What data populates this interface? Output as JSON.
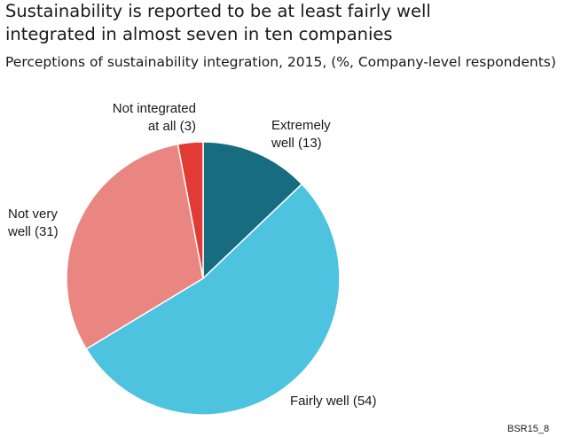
{
  "title_lines": [
    "Sustainability is reported to be at least fairly well",
    "integrated in almost seven in ten companies"
  ],
  "subtitle": "Perceptions of sustainability integration, 2015, (%, Company-level respondents)",
  "source_note": "BSR15_8",
  "chart_data": {
    "type": "pie",
    "title": "Sustainability is reported to be at least fairly well integrated in almost seven in ten companies",
    "subtitle": "Perceptions of sustainability integration, 2015, (%, Company-level respondents)",
    "start": "12 o'clock",
    "direction": "clockwise",
    "slices": [
      {
        "label_lines": [
          "Extremely",
          "well (13)"
        ],
        "value": 13,
        "color": "#176c80"
      },
      {
        "label_lines": [
          "Fairly well (54)"
        ],
        "value": 54,
        "color": "#4ec3e0"
      },
      {
        "label_lines": [
          "Not very",
          "well (31)"
        ],
        "value": 31,
        "color": "#ea8682"
      },
      {
        "label_lines": [
          "Not integrated",
          "at all (3)"
        ],
        "value": 3,
        "color": "#e23a35"
      }
    ]
  }
}
